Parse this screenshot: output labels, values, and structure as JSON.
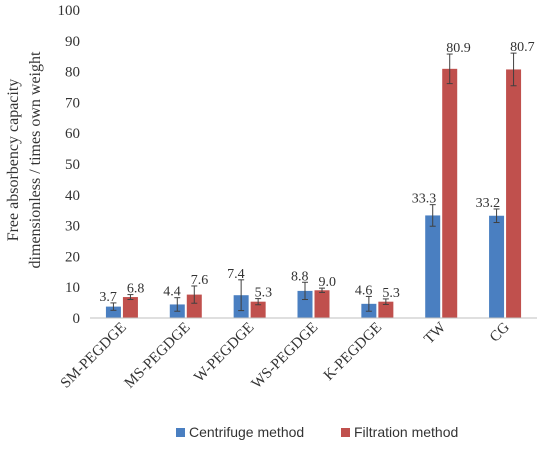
{
  "chart_data": {
    "type": "bar",
    "title": "",
    "ylabel_line1": "Free absorbency capacity",
    "ylabel_line2": "dimensionless / times own weight",
    "ylim": [
      0,
      100
    ],
    "yticks": [
      "0",
      "10",
      "20",
      "30",
      "40",
      "50",
      "60",
      "70",
      "80",
      "90",
      "100"
    ],
    "grid": false,
    "legend_position": "bottom",
    "categories": [
      "SM-PEGDGE",
      "MS-PEGDGE",
      "W-PEGDGE",
      "WS-PEGDGE",
      "K-PEGDGE",
      "TW",
      "CG"
    ],
    "series": [
      {
        "name": "Centrifuge method",
        "color": "#4a7fc1",
        "values": [
          3.7,
          4.4,
          7.4,
          8.8,
          4.6,
          33.3,
          33.2
        ],
        "labels": [
          "3.7",
          "4.4",
          "7.4",
          "8.8",
          "4.6",
          "33.3",
          "33.2"
        ],
        "errors": [
          1.2,
          2.2,
          5.0,
          2.8,
          2.4,
          3.5,
          2.2
        ]
      },
      {
        "name": "Filtration method",
        "color": "#c0504d",
        "values": [
          6.8,
          7.6,
          5.3,
          9.0,
          5.3,
          80.9,
          80.7
        ],
        "labels": [
          "6.8",
          "7.6",
          "5.3",
          "9.0",
          "5.3",
          "80.9",
          "80.7"
        ],
        "errors": [
          0.8,
          2.8,
          1.0,
          0.7,
          0.9,
          4.8,
          5.3
        ]
      }
    ]
  }
}
